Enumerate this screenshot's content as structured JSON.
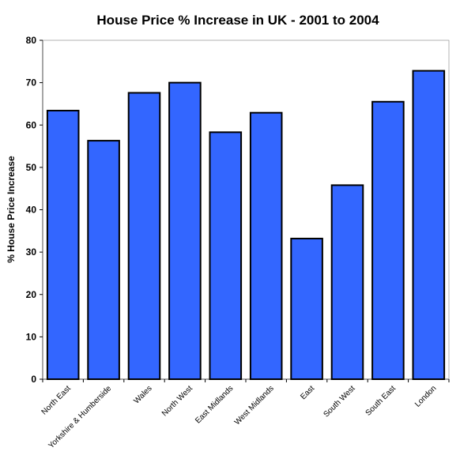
{
  "chart_data": {
    "type": "bar",
    "title": "House Price % Increase in UK - 2001 to 2004",
    "xlabel": "",
    "ylabel": "% House Price Increase",
    "categories": [
      "North East",
      "Yorkshire & Humberside",
      "Wales",
      "North West",
      "East Midlands",
      "West Midlands",
      "East",
      "South West",
      "South East",
      "London"
    ],
    "values": [
      63.4,
      56.3,
      67.6,
      70.0,
      58.3,
      62.9,
      33.2,
      45.8,
      65.5,
      72.8
    ],
    "ylim": [
      0,
      80
    ],
    "yticks": [
      "0",
      "10",
      "20",
      "30",
      "40",
      "50",
      "60",
      "70",
      "80"
    ],
    "grid": false,
    "legend": "none",
    "bar_color": "#3366ff",
    "edge_color": "#000000"
  }
}
